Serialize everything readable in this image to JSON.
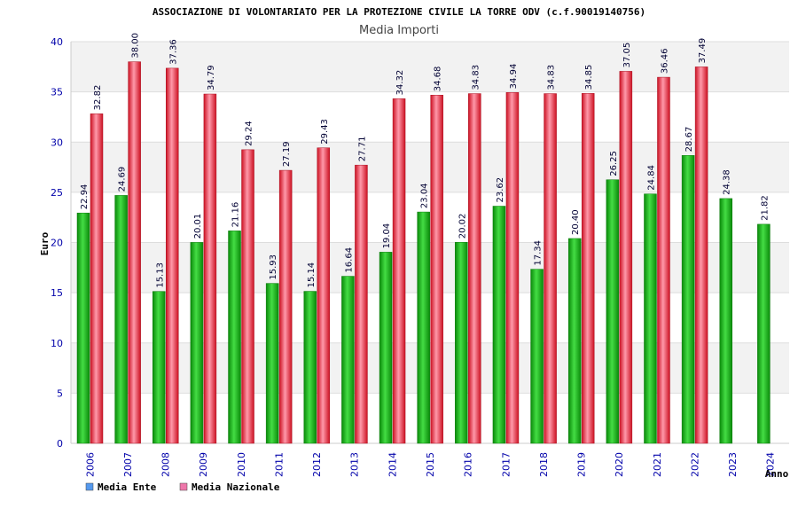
{
  "chart_data": {
    "type": "bar",
    "title": "ASSOCIAZIONE DI VOLONTARIATO PER LA PROTEZIONE CIVILE LA TORRE ODV (c.f.90019140756)",
    "subtitle": "Media Importi",
    "xlabel": "Anno",
    "ylabel": "Euro",
    "ylim": [
      0,
      40
    ],
    "yticks": [
      0,
      5,
      10,
      15,
      20,
      25,
      30,
      35,
      40
    ],
    "grid": true,
    "legend_position": "bottom-left",
    "categories": [
      "2006",
      "2007",
      "2008",
      "2009",
      "2010",
      "2011",
      "2012",
      "2013",
      "2014",
      "2015",
      "2016",
      "2017",
      "2018",
      "2019",
      "2020",
      "2021",
      "2022",
      "2023",
      "2024"
    ],
    "series": [
      {
        "name": "Media Ente",
        "legend_color": "#5599ee",
        "bar_color": "#22bb22",
        "values": [
          22.94,
          24.69,
          15.13,
          20.01,
          21.16,
          15.93,
          15.14,
          16.64,
          19.04,
          23.04,
          20.02,
          23.62,
          17.34,
          20.4,
          26.25,
          24.84,
          28.67,
          24.38,
          21.82
        ],
        "labels": [
          "22.94",
          "24.69",
          "15.13",
          "20.01",
          "21.16",
          "15.93",
          "15.14",
          "16.64",
          "19.04",
          "23.04",
          "20.02",
          "23.62",
          "17.34",
          "20.40",
          "26.25",
          "24.84",
          "28.67",
          "24.38",
          "21.82"
        ]
      },
      {
        "name": "Media Nazionale",
        "legend_color": "#ee77aa",
        "bar_color": "#ee2233",
        "values": [
          32.82,
          38.0,
          37.36,
          34.79,
          29.24,
          27.19,
          29.43,
          27.71,
          34.32,
          34.68,
          34.83,
          34.94,
          34.83,
          34.85,
          37.05,
          36.46,
          37.49,
          null,
          null
        ],
        "labels": [
          "32.82",
          "38.00",
          "37.36",
          "34.79",
          "29.24",
          "27.19",
          "29.43",
          "27.71",
          "34.32",
          "34.68",
          "34.83",
          "34.94",
          "34.83",
          "34.85",
          "37.05",
          "36.46",
          "37.49",
          null,
          null
        ]
      }
    ]
  }
}
